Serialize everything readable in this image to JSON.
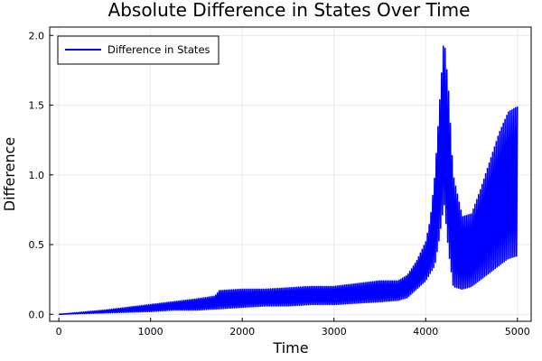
{
  "chart_data": {
    "type": "line",
    "title": "Absolute Difference in States Over Time",
    "xlabel": "Time",
    "ylabel": "Difference",
    "xlim": [
      -100,
      5150
    ],
    "ylim": [
      -0.05,
      2.06
    ],
    "x_ticks": [
      0,
      1000,
      2000,
      3000,
      4000,
      5000
    ],
    "x_tick_labels": [
      "0",
      "1000",
      "2000",
      "3000",
      "4000",
      "5000"
    ],
    "y_ticks": [
      0.0,
      0.5,
      1.0,
      1.5,
      2.0
    ],
    "y_tick_labels": [
      "0.0",
      "0.5",
      "1.0",
      "1.5",
      "2.0"
    ],
    "grid": true,
    "legend_position": "top-left",
    "series": [
      {
        "name": "Difference in States",
        "color": "#0000ff",
        "style": "oscillating",
        "upper_envelope": [
          [
            0,
            0.0
          ],
          [
            250,
            0.015
          ],
          [
            500,
            0.03
          ],
          [
            750,
            0.05
          ],
          [
            1000,
            0.07
          ],
          [
            1250,
            0.09
          ],
          [
            1500,
            0.11
          ],
          [
            1700,
            0.13
          ],
          [
            1750,
            0.17
          ],
          [
            2000,
            0.18
          ],
          [
            2250,
            0.18
          ],
          [
            2500,
            0.19
          ],
          [
            2750,
            0.2
          ],
          [
            3000,
            0.2
          ],
          [
            3250,
            0.22
          ],
          [
            3500,
            0.24
          ],
          [
            3700,
            0.24
          ],
          [
            3800,
            0.28
          ],
          [
            3900,
            0.38
          ],
          [
            4000,
            0.52
          ],
          [
            4050,
            0.68
          ],
          [
            4100,
            1.0
          ],
          [
            4150,
            1.5
          ],
          [
            4200,
            2.0
          ],
          [
            4250,
            1.6
          ],
          [
            4300,
            1.0
          ],
          [
            4400,
            0.7
          ],
          [
            4500,
            0.72
          ],
          [
            4600,
            0.9
          ],
          [
            4700,
            1.1
          ],
          [
            4800,
            1.3
          ],
          [
            4900,
            1.45
          ],
          [
            5000,
            1.49
          ]
        ],
        "lower_envelope": [
          [
            0,
            0.0
          ],
          [
            250,
            0.005
          ],
          [
            500,
            0.01
          ],
          [
            750,
            0.015
          ],
          [
            1000,
            0.02
          ],
          [
            1250,
            0.03
          ],
          [
            1500,
            0.03
          ],
          [
            1750,
            0.04
          ],
          [
            2000,
            0.05
          ],
          [
            2250,
            0.06
          ],
          [
            2500,
            0.06
          ],
          [
            2750,
            0.07
          ],
          [
            3000,
            0.07
          ],
          [
            3250,
            0.08
          ],
          [
            3500,
            0.09
          ],
          [
            3700,
            0.1
          ],
          [
            3800,
            0.12
          ],
          [
            3900,
            0.18
          ],
          [
            4000,
            0.24
          ],
          [
            4100,
            0.35
          ],
          [
            4150,
            0.55
          ],
          [
            4200,
            0.8
          ],
          [
            4250,
            0.45
          ],
          [
            4300,
            0.2
          ],
          [
            4400,
            0.18
          ],
          [
            4500,
            0.2
          ],
          [
            4600,
            0.25
          ],
          [
            4700,
            0.3
          ],
          [
            4800,
            0.35
          ],
          [
            4900,
            0.4
          ],
          [
            5000,
            0.42
          ]
        ]
      }
    ]
  }
}
